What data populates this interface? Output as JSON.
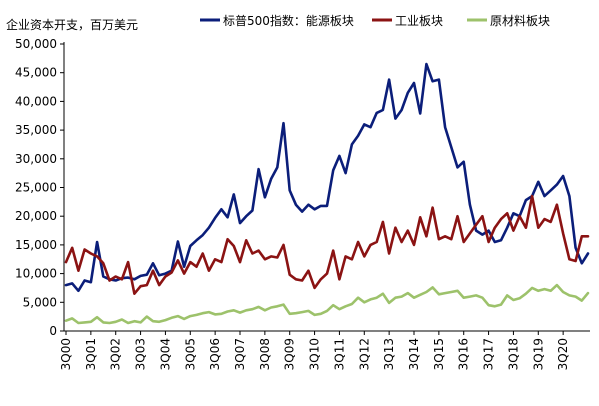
{
  "chart_data": {
    "type": "line",
    "ylabel": "企业资本开支，百万美元",
    "ylim": [
      0,
      50000
    ],
    "yticks": [
      0,
      5000,
      10000,
      15000,
      20000,
      25000,
      30000,
      35000,
      40000,
      45000,
      50000
    ],
    "ytick_labels": [
      "0",
      "5,000",
      "10,000",
      "15,000",
      "20,000",
      "25,000",
      "30,000",
      "35,000",
      "40,000",
      "45,000",
      "50,000"
    ],
    "x_ticks": [
      "3Q00",
      "3Q01",
      "3Q02",
      "3Q03",
      "3Q04",
      "3Q05",
      "3Q06",
      "3Q07",
      "3Q08",
      "3Q09",
      "3Q10",
      "3Q11",
      "3Q12",
      "3Q13",
      "3Q14",
      "3Q15",
      "3Q16",
      "3Q17",
      "3Q18",
      "3Q19",
      "3Q20"
    ],
    "grid": false,
    "legend_position": "top",
    "series": [
      {
        "name": "标普500指数：能源板块",
        "color": "#0b1e7a",
        "values": [
          8000,
          8300,
          7000,
          8800,
          8500,
          15500,
          9500,
          9000,
          8800,
          9200,
          9300,
          9000,
          9600,
          9800,
          11800,
          9700,
          10000,
          10500,
          15600,
          11200,
          14800,
          15800,
          16700,
          18000,
          19700,
          21200,
          19800,
          23800,
          18800,
          20000,
          21000,
          28200,
          23300,
          26500,
          28500,
          36200,
          24500,
          22000,
          20800,
          22000,
          21200,
          21800,
          21800,
          28000,
          30500,
          27500,
          32500,
          34000,
          36000,
          35500,
          38000,
          38500,
          43800,
          37000,
          38500,
          41500,
          43200,
          37900,
          46500,
          43500,
          43800,
          35500,
          32000,
          28500,
          29500,
          22000,
          17500,
          16800,
          17500,
          15500,
          15800,
          18000,
          20500,
          20000,
          22800,
          23500,
          26000,
          23500,
          24500,
          25500,
          27000,
          23500,
          14500,
          11800,
          13500
        ]
      },
      {
        "name": "工业板块",
        "color": "#8b1313",
        "values": [
          12000,
          14500,
          10500,
          14200,
          13500,
          13000,
          11800,
          8800,
          9500,
          9000,
          12000,
          6500,
          7800,
          8000,
          10500,
          8000,
          9500,
          10200,
          12300,
          10000,
          12000,
          11200,
          13500,
          10500,
          12500,
          12000,
          16000,
          14800,
          12000,
          15800,
          13500,
          14000,
          12500,
          13000,
          12800,
          15000,
          9800,
          9000,
          8800,
          10500,
          7500,
          9000,
          10000,
          14000,
          9000,
          13000,
          12500,
          15500,
          13000,
          15000,
          15500,
          19000,
          13500,
          18000,
          15500,
          17500,
          15000,
          19800,
          16500,
          21500,
          16000,
          16500,
          16000,
          20000,
          15500,
          17000,
          18500,
          20000,
          15500,
          18000,
          19500,
          20500,
          17500,
          20000,
          18000,
          23500,
          18000,
          19500,
          19000,
          22000,
          17000,
          12500,
          12200,
          16500,
          16500
        ]
      },
      {
        "name": "原材料板块",
        "color": "#9dc26b",
        "values": [
          1800,
          2200,
          1400,
          1500,
          1600,
          2400,
          1500,
          1400,
          1600,
          2000,
          1400,
          1700,
          1500,
          2500,
          1700,
          1600,
          1900,
          2300,
          2600,
          2100,
          2600,
          2800,
          3100,
          3300,
          2900,
          3000,
          3400,
          3600,
          3200,
          3600,
          3800,
          4200,
          3600,
          4100,
          4300,
          4600,
          3000,
          3100,
          3300,
          3500,
          2800,
          3000,
          3500,
          4500,
          3800,
          4300,
          4700,
          5800,
          5000,
          5500,
          5800,
          6500,
          4900,
          5800,
          6000,
          6600,
          5800,
          6300,
          6800,
          7600,
          6400,
          6600,
          6800,
          7000,
          5800,
          6000,
          6200,
          5800,
          4500,
          4300,
          4600,
          6200,
          5400,
          5700,
          6500,
          7500,
          7000,
          7300,
          7000,
          8000,
          6800,
          6200,
          6000,
          5300,
          6600
        ]
      }
    ]
  }
}
